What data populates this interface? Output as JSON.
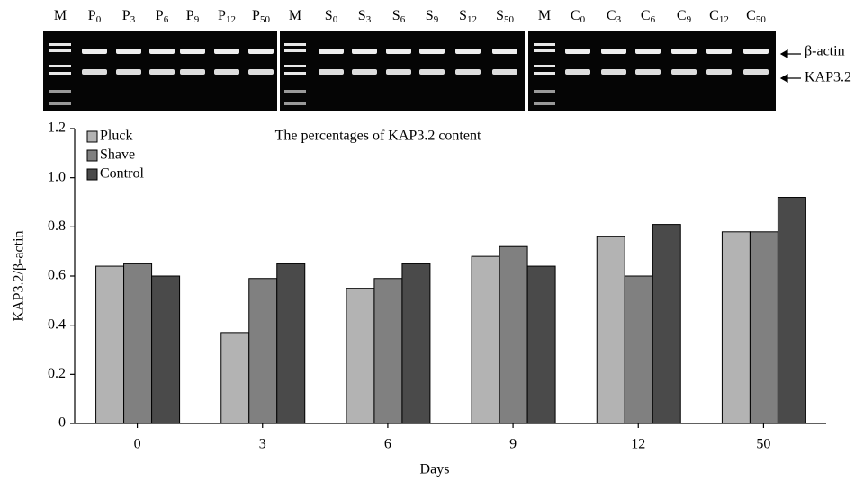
{
  "gel": {
    "panels": [
      {
        "lanes": [
          {
            "letter": "M"
          },
          {
            "letter": "P",
            "sub": "0"
          },
          {
            "letter": "P",
            "sub": "3"
          },
          {
            "letter": "P",
            "sub": "6"
          },
          {
            "letter": "P",
            "sub": "9"
          },
          {
            "letter": "P",
            "sub": "12"
          },
          {
            "letter": "P",
            "sub": "50"
          }
        ]
      },
      {
        "lanes": [
          {
            "letter": "M"
          },
          {
            "letter": "S",
            "sub": "0"
          },
          {
            "letter": "S",
            "sub": "3"
          },
          {
            "letter": "S",
            "sub": "6"
          },
          {
            "letter": "S",
            "sub": "9"
          },
          {
            "letter": "S",
            "sub": "12"
          },
          {
            "letter": "S",
            "sub": "50"
          }
        ]
      },
      {
        "lanes": [
          {
            "letter": "M"
          },
          {
            "letter": "C",
            "sub": "0"
          },
          {
            "letter": "C",
            "sub": "3"
          },
          {
            "letter": "C",
            "sub": "6"
          },
          {
            "letter": "C",
            "sub": "9"
          },
          {
            "letter": "C",
            "sub": "12"
          },
          {
            "letter": "C",
            "sub": "50"
          }
        ]
      }
    ],
    "band_labels": [
      "β-actin",
      "KAP3.2"
    ]
  },
  "chart_data": {
    "type": "bar",
    "title": "The percentages of KAP3.2 content",
    "x_label": "Days",
    "y_label": "KAP3.2/β-actin",
    "categories": [
      "0",
      "3",
      "6",
      "9",
      "12",
      "50"
    ],
    "series": [
      {
        "name": "Pluck",
        "color": "#b3b3b3",
        "values": [
          0.64,
          0.37,
          0.55,
          0.68,
          0.76,
          0.78
        ]
      },
      {
        "name": "Shave",
        "color": "#808080",
        "values": [
          0.65,
          0.59,
          0.59,
          0.72,
          0.6,
          0.78
        ]
      },
      {
        "name": "Control",
        "color": "#4a4a4a",
        "values": [
          0.6,
          0.65,
          0.65,
          0.64,
          0.81,
          0.92
        ]
      }
    ],
    "ylim": [
      0,
      1.2
    ],
    "yticks": [
      0,
      0.2,
      0.4,
      0.6,
      0.8,
      {
        "value": 1,
        "label": "1.0"
      },
      1.2
    ],
    "legend": "top-left"
  }
}
